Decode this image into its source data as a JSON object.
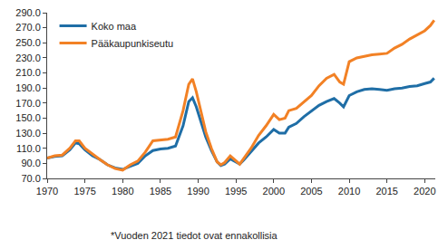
{
  "chart_data": {
    "type": "line",
    "x": [
      1970,
      1971,
      1972,
      1973,
      1973.75,
      1974.25,
      1975,
      1976,
      1977,
      1978,
      1979,
      1980,
      1981,
      1982,
      1983,
      1984,
      1985,
      1986,
      1987,
      1988,
      1988.75,
      1989.25,
      1989.75,
      1990.25,
      1991,
      1991.75,
      1992.5,
      1993,
      1993.5,
      1994.25,
      1995,
      1995.5,
      1996,
      1997,
      1998,
      1999,
      2000,
      2000.75,
      2001.5,
      2002,
      2003,
      2004,
      2005,
      2006,
      2007,
      2008,
      2008.75,
      2009.25,
      2010,
      2011,
      2012,
      2013,
      2014,
      2015,
      2016,
      2017,
      2018,
      2019,
      2020,
      2020.75,
      2021.25
    ],
    "series": [
      {
        "name": "Koko maa",
        "color": "#1f6ea6",
        "values": [
          97,
          99,
          100,
          108,
          117,
          116,
          108,
          100,
          95,
          88,
          84,
          82,
          86,
          90,
          100,
          107,
          109,
          110,
          113,
          140,
          172,
          177,
          165,
          150,
          125,
          107,
          92,
          87,
          89,
          96,
          92,
          89,
          94,
          105,
          117,
          125,
          135,
          130,
          130,
          138,
          143,
          152,
          160,
          167,
          172,
          176,
          170,
          165,
          180,
          185,
          188,
          189,
          188,
          187,
          189,
          190,
          192,
          193,
          196,
          198,
          203
        ]
      },
      {
        "name": "Pääkaupunkiseutu",
        "color": "#f28125",
        "values": [
          97,
          100,
          101,
          110,
          120,
          120,
          110,
          102,
          95,
          88,
          83,
          81,
          88,
          93,
          105,
          120,
          121,
          122,
          125,
          160,
          195,
          202,
          185,
          165,
          132,
          110,
          92,
          88,
          91,
          100,
          93,
          89,
          96,
          110,
          127,
          140,
          155,
          148,
          150,
          160,
          163,
          172,
          180,
          193,
          203,
          208,
          198,
          195,
          225,
          230,
          232,
          234,
          235,
          236,
          243,
          248,
          255,
          260,
          266,
          273,
          280
        ]
      }
    ],
    "xlim": [
      1970,
      2021.4
    ],
    "xticks": [
      1970,
      1975,
      1980,
      1985,
      1990,
      1995,
      2000,
      2005,
      2010,
      2015,
      2020
    ],
    "ylim": [
      70,
      290
    ],
    "yticks": [
      {
        "value": 70,
        "label": "70.0"
      },
      {
        "value": 90,
        "label": "90.0"
      },
      {
        "value": 110,
        "label": "110.0"
      },
      {
        "value": 130,
        "label": "130.0"
      },
      {
        "value": 150,
        "label": "150.0"
      },
      {
        "value": 170,
        "label": "170.0"
      },
      {
        "value": 190,
        "label": "190.0"
      },
      {
        "value": 210,
        "label": "210.0"
      },
      {
        "value": 230,
        "label": "230.0"
      },
      {
        "value": 250,
        "label": "250.0"
      },
      {
        "value": 270,
        "label": "270.0"
      },
      {
        "value": 290,
        "label": "290.0"
      }
    ],
    "grid": false,
    "legend": "upper left",
    "annotations": [
      "*Vuoden 2021 tiedot ovat ennakollisia"
    ]
  }
}
